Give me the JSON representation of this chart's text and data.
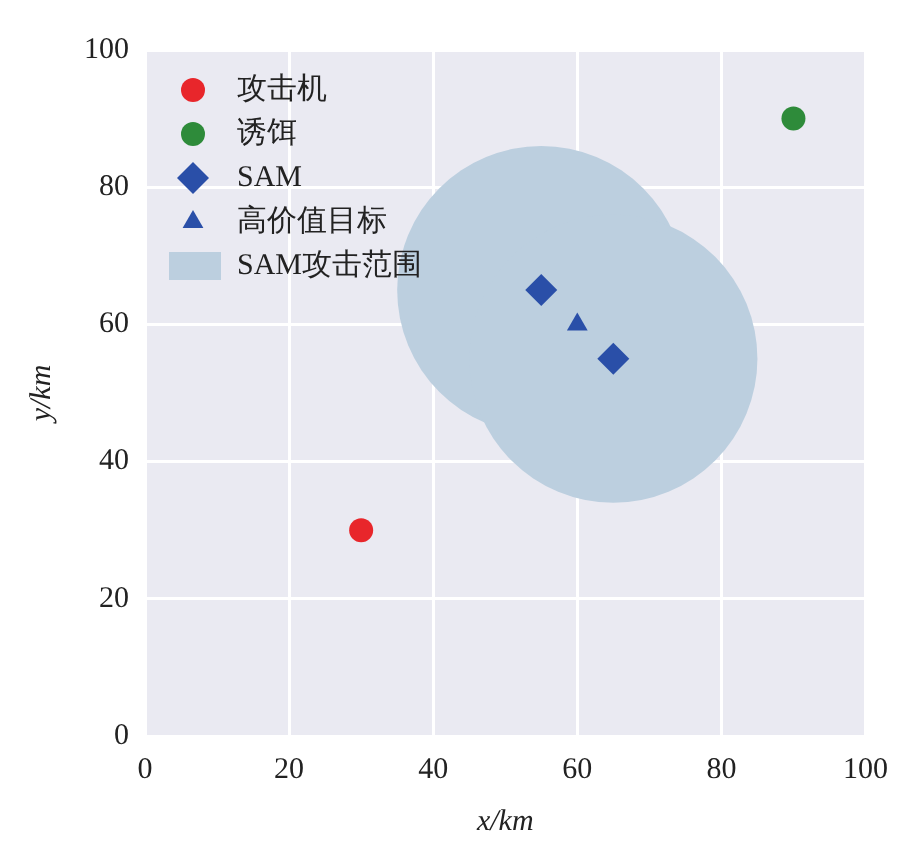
{
  "chart_data": {
    "type": "scatter",
    "xlabel": "x/km",
    "ylabel": "y/km",
    "xlim": [
      0,
      100
    ],
    "ylim": [
      0,
      100
    ],
    "xticks": [
      0,
      20,
      40,
      60,
      80,
      100
    ],
    "yticks": [
      0,
      20,
      40,
      60,
      80,
      100
    ],
    "grid": true,
    "legend": "top left",
    "series": [
      {
        "name": "攻击机",
        "color": "#e8262b",
        "marker": "circle",
        "x": [
          30
        ],
        "values": [
          30
        ]
      },
      {
        "name": "诱饵",
        "color": "#2e8b3a",
        "marker": "circle",
        "x": [
          90
        ],
        "values": [
          90
        ]
      },
      {
        "name": "SAM",
        "color": "#2a4fa8",
        "marker": "diamond",
        "x": [
          55,
          65
        ],
        "values": [
          65,
          55
        ]
      },
      {
        "name": "高价值目标",
        "color": "#2a4fa8",
        "marker": "triangle",
        "x": [
          60
        ],
        "values": [
          60
        ]
      },
      {
        "name": "SAM攻击范围",
        "color": "#bccfdf",
        "marker": "circle",
        "x": [
          55,
          65
        ],
        "values": [
          65,
          55
        ]
      }
    ]
  }
}
